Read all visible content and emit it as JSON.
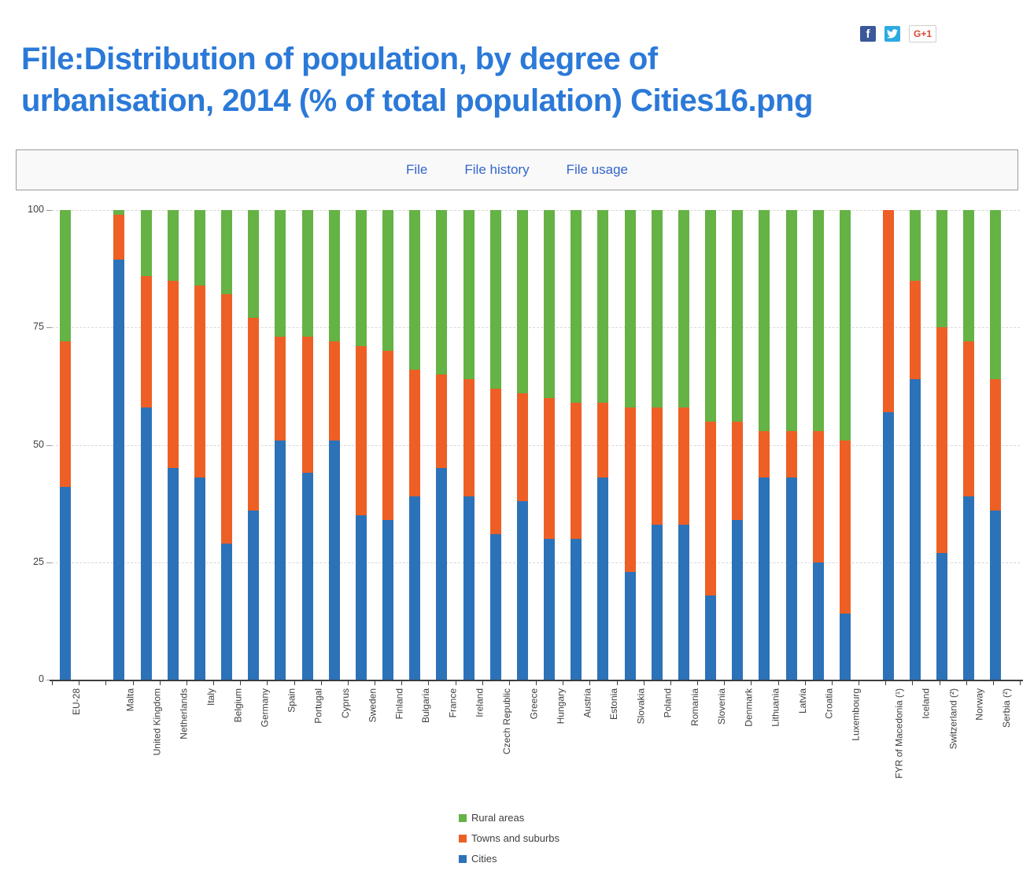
{
  "page": {
    "title_line1": "File:Distribution of population, by degree of",
    "title_line2": "urbanisation, 2014 (% of total population) Cities16.png",
    "title_color": "#2b79d8"
  },
  "share": {
    "facebook_label": "f",
    "twitter_icon": "twitter-bird",
    "gplus_label": "G+1"
  },
  "tabs": [
    {
      "label": "File"
    },
    {
      "label": "File history"
    },
    {
      "label": "File usage"
    }
  ],
  "chart_data": {
    "type": "bar",
    "stacked": true,
    "title": "",
    "xlabel": "",
    "ylabel": "",
    "ylim": [
      0,
      100
    ],
    "yticks": [
      0,
      25,
      50,
      75,
      100
    ],
    "grid": "horizontal dashed at 25, 50, 75, 100",
    "legend_position": "bottom-center-left",
    "separators_after_categories": [
      "EU-28",
      "Luxembourg"
    ],
    "categories": [
      "EU-28",
      "Malta",
      "United Kingdom",
      "Netherlands",
      "Italy",
      "Belgium",
      "Germany",
      "Spain",
      "Portugal",
      "Cyprus",
      "Sweden",
      "Finland",
      "Bulgaria",
      "France",
      "Ireland",
      "Czech Republic",
      "Greece",
      "Hungary",
      "Austria",
      "Estonia",
      "Slovakia",
      "Poland",
      "Romania",
      "Slovenia",
      "Denmark",
      "Lithuania",
      "Latvia",
      "Croatia",
      "Luxembourg",
      "FYR of Macedonia (¹)",
      "Iceland",
      "Switzerland (²)",
      "Norway",
      "Serbia (²)"
    ],
    "series": [
      {
        "name": "Cities",
        "color": "#2c72b8",
        "values": [
          41,
          89.5,
          58,
          45,
          43,
          29,
          36,
          51,
          44,
          51,
          35,
          34,
          39,
          45,
          39,
          31,
          38,
          30,
          30,
          43,
          23,
          33,
          33,
          18,
          34,
          43,
          43,
          25,
          14,
          57,
          64,
          27,
          39,
          36
        ]
      },
      {
        "name": "Towns and suburbs",
        "color": "#ee5f25",
        "values": [
          31,
          9.5,
          28,
          40,
          41,
          53,
          41,
          22,
          29,
          21,
          36,
          36,
          27,
          20,
          25,
          31,
          23,
          30,
          29,
          16,
          35,
          25,
          25,
          37,
          21,
          10,
          10,
          28,
          37,
          43,
          21,
          48,
          33,
          28
        ]
      },
      {
        "name": "Rural areas",
        "color": "#65b245",
        "values": [
          28,
          1,
          14,
          15,
          16,
          18,
          23,
          27,
          27,
          28,
          29,
          30,
          34,
          35,
          36,
          38,
          39,
          40,
          41,
          41,
          42,
          42,
          42,
          45,
          45,
          47,
          47,
          47,
          49,
          0,
          15,
          25,
          28,
          36
        ]
      }
    ],
    "legend": [
      {
        "label": "Rural areas",
        "color": "#65b245"
      },
      {
        "label": "Towns and suburbs",
        "color": "#ee5f25"
      },
      {
        "label": "Cities",
        "color": "#2c72b8"
      }
    ]
  }
}
